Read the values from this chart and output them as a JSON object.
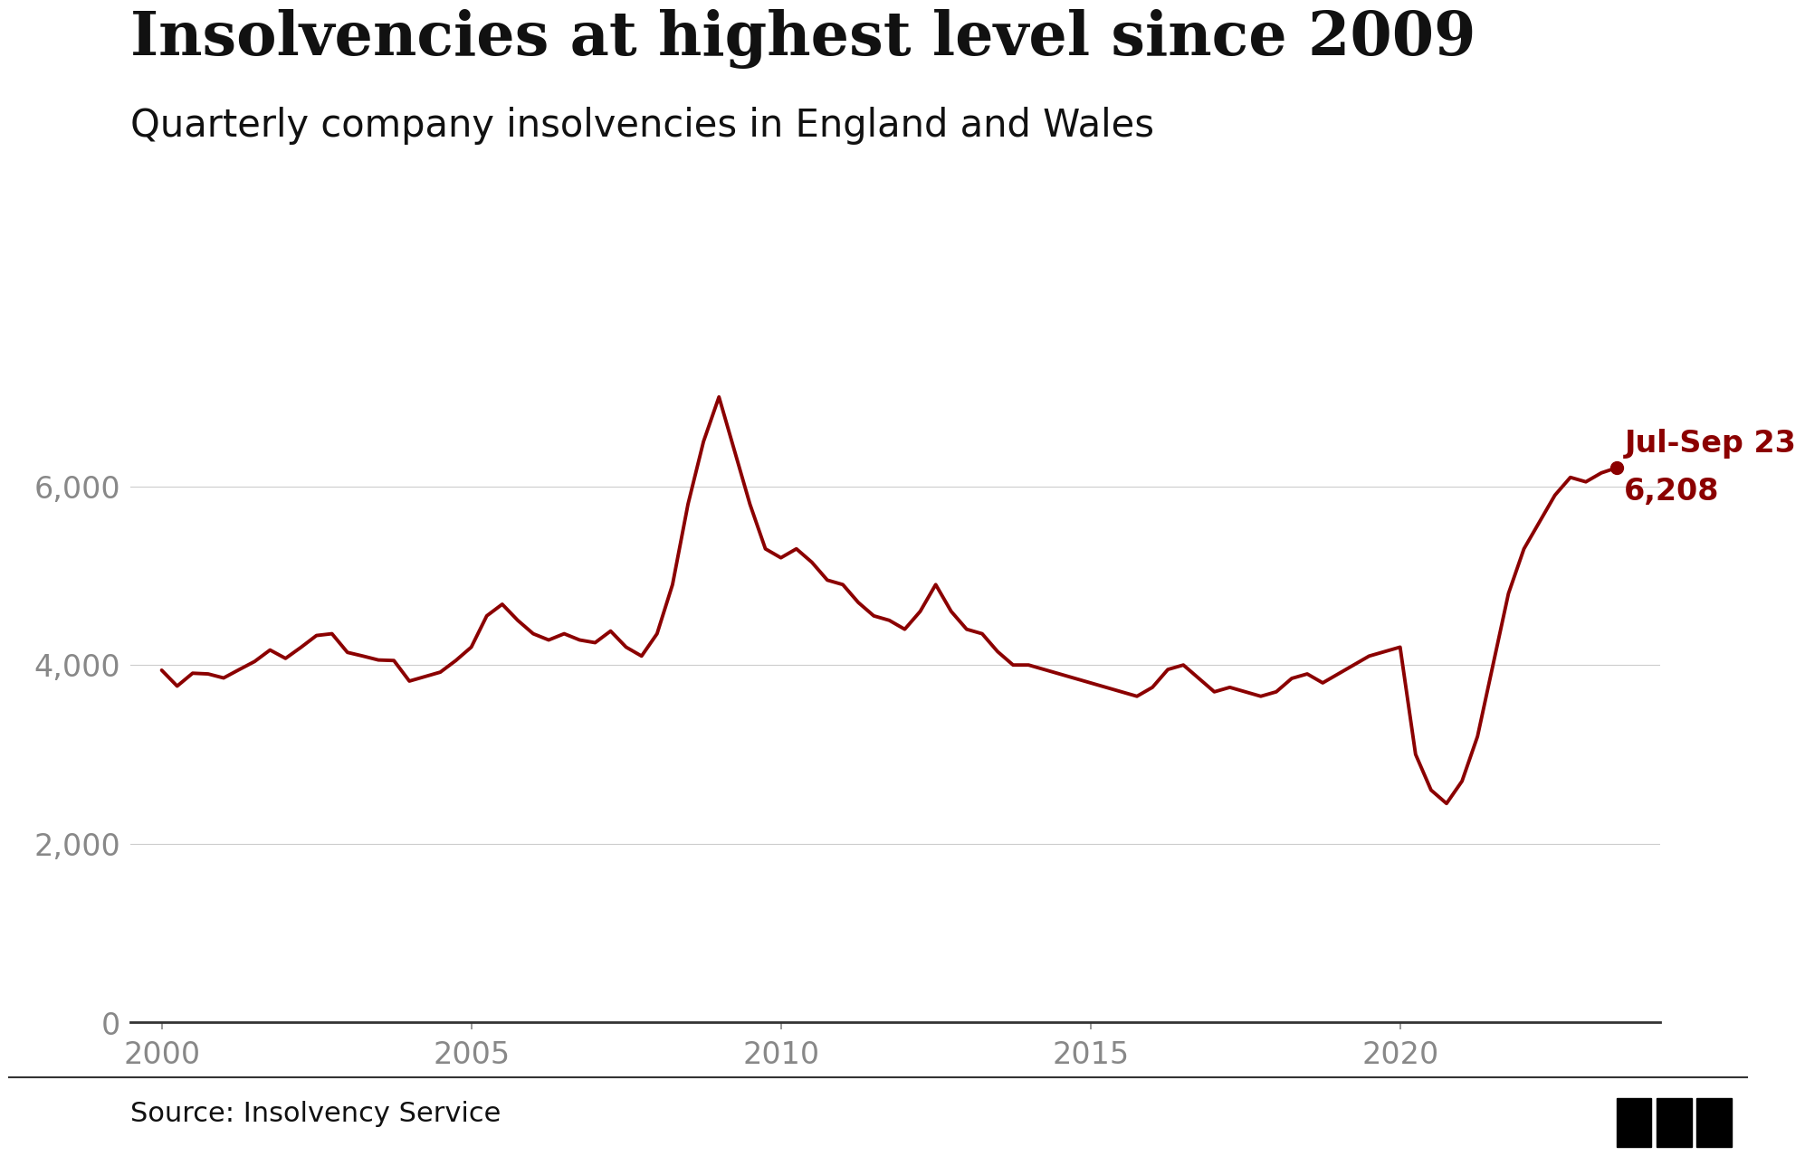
{
  "title": "Insolvencies at highest level since 2009",
  "subtitle": "Quarterly company insolvencies in England and Wales",
  "source": "Source: Insolvency Service",
  "line_color": "#8B0000",
  "annotation_label_line1": "Jul-Sep 23",
  "annotation_label_line2": "6,208",
  "annotation_color": "#8B0000",
  "background_color": "#ffffff",
  "yticks": [
    0,
    2000,
    4000,
    6000
  ],
  "xticks": [
    2000,
    2005,
    2010,
    2015,
    2020
  ],
  "xlim": [
    1999.5,
    2024.2
  ],
  "ylim": [
    0,
    8200
  ],
  "x": [
    2000.0,
    2000.25,
    2000.5,
    2000.75,
    2001.0,
    2001.25,
    2001.5,
    2001.75,
    2002.0,
    2002.25,
    2002.5,
    2002.75,
    2003.0,
    2003.25,
    2003.5,
    2003.75,
    2004.0,
    2004.25,
    2004.5,
    2004.75,
    2005.0,
    2005.25,
    2005.5,
    2005.75,
    2006.0,
    2006.25,
    2006.5,
    2006.75,
    2007.0,
    2007.25,
    2007.5,
    2007.75,
    2008.0,
    2008.25,
    2008.5,
    2008.75,
    2009.0,
    2009.25,
    2009.5,
    2009.75,
    2010.0,
    2010.25,
    2010.5,
    2010.75,
    2011.0,
    2011.25,
    2011.5,
    2011.75,
    2012.0,
    2012.25,
    2012.5,
    2012.75,
    2013.0,
    2013.25,
    2013.5,
    2013.75,
    2014.0,
    2014.25,
    2014.5,
    2014.75,
    2015.0,
    2015.25,
    2015.5,
    2015.75,
    2016.0,
    2016.25,
    2016.5,
    2016.75,
    2017.0,
    2017.25,
    2017.5,
    2017.75,
    2018.0,
    2018.25,
    2018.5,
    2018.75,
    2019.0,
    2019.25,
    2019.5,
    2019.75,
    2020.0,
    2020.25,
    2020.5,
    2020.75,
    2021.0,
    2021.25,
    2021.5,
    2021.75,
    2022.0,
    2022.25,
    2022.5,
    2022.75,
    2023.0,
    2023.25,
    2023.5
  ],
  "y": [
    3942,
    3764,
    3908,
    3900,
    3855,
    3948,
    4039,
    4168,
    4074,
    4198,
    4330,
    4350,
    4141,
    4100,
    4056,
    4050,
    3820,
    3870,
    3920,
    4050,
    4200,
    4550,
    4680,
    4500,
    4350,
    4280,
    4350,
    4280,
    4250,
    4380,
    4200,
    4100,
    4350,
    4900,
    5800,
    6500,
    7000,
    6400,
    5800,
    5300,
    5200,
    5300,
    5150,
    4950,
    4900,
    4700,
    4550,
    4500,
    4400,
    4600,
    4900,
    4600,
    4400,
    4350,
    4150,
    4000,
    4000,
    3950,
    3900,
    3850,
    3800,
    3750,
    3700,
    3650,
    3750,
    3950,
    4000,
    3850,
    3700,
    3750,
    3700,
    3650,
    3700,
    3850,
    3900,
    3800,
    3900,
    4000,
    4100,
    4150,
    4200,
    3000,
    2600,
    2450,
    2700,
    3200,
    4000,
    4800,
    5300,
    5600,
    5900,
    6100,
    6050,
    6150,
    6208
  ]
}
